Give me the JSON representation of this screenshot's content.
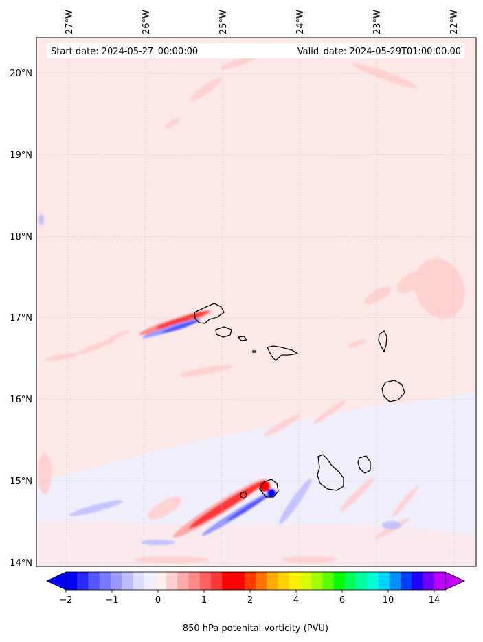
{
  "map": {
    "start_label": "Start date: 2024-05-27_00:00:00",
    "valid_label": "Valid_date: 2024-05-29T01:00:00.00",
    "lon_ticks": [
      "27°W",
      "26°W",
      "25°W",
      "24°W",
      "23°W",
      "22°W"
    ],
    "lat_ticks": [
      "20°N",
      "19°N",
      "18°N",
      "17°N",
      "16°N",
      "15°N",
      "14°N"
    ],
    "background_color": "#fde8e8",
    "coastline_color": "#000000"
  },
  "colorbar": {
    "label": "850 hPa potenital vorticity (PVU)",
    "tick_labels": [
      "−2",
      "−1",
      "0",
      "1",
      "2",
      "4",
      "6",
      "10",
      "14"
    ],
    "colors": [
      "#0000ff",
      "#2a2aff",
      "#5555ff",
      "#7777ff",
      "#9999ff",
      "#bbbbff",
      "#dcdcff",
      "#eeeeff",
      "#ffeded",
      "#ffcfcf",
      "#ffaaaa",
      "#ff8888",
      "#ff6060",
      "#ff3838",
      "#ff0000",
      "#ff0000",
      "#ff3b00",
      "#ff7300",
      "#ffaa00",
      "#ffd200",
      "#fff000",
      "#d7ff00",
      "#a0ff00",
      "#5aff00",
      "#00ff00",
      "#00ff5a",
      "#00ffa0",
      "#00ffd7",
      "#00d2ff",
      "#0090ff",
      "#0040ff",
      "#2000ff",
      "#7000ff",
      "#c000ff"
    ]
  }
}
